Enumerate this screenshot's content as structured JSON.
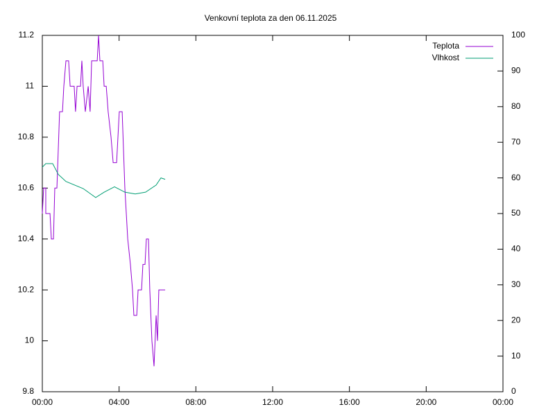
{
  "chart_data": {
    "type": "line",
    "title": "Venkovní teplota za den 06.11.2025",
    "xlim": [
      0,
      24
    ],
    "xticks": [
      {
        "value": 0,
        "label": "00:00"
      },
      {
        "value": 4,
        "label": "04:00"
      },
      {
        "value": 8,
        "label": "08:00"
      },
      {
        "value": 12,
        "label": "12:00"
      },
      {
        "value": 16,
        "label": "16:00"
      },
      {
        "value": 20,
        "label": "20:00"
      },
      {
        "value": 24,
        "label": "00:00"
      }
    ],
    "ylim": [
      9.8,
      11.2
    ],
    "yticks": [
      9.8,
      10,
      10.2,
      10.4,
      10.6,
      10.8,
      11,
      11.2
    ],
    "y2lim": [
      0,
      100
    ],
    "y2ticks": [
      0,
      10,
      20,
      30,
      40,
      50,
      60,
      70,
      80,
      90,
      100
    ],
    "legend": "top-right",
    "series": [
      {
        "name": "Teplota",
        "color": "#9400d3",
        "x": [
          0,
          0.07,
          0.18,
          0.18,
          0.4,
          0.47,
          0.58,
          0.65,
          0.76,
          0.9,
          1.05,
          1.12,
          1.23,
          1.37,
          1.45,
          1.66,
          1.73,
          1.81,
          1.99,
          2.06,
          2.13,
          2.24,
          2.39,
          2.49,
          2.57,
          2.86,
          2.93,
          3.0,
          3.15,
          3.22,
          3.33,
          3.43,
          3.58,
          3.69,
          3.87,
          4.01,
          4.16,
          4.3,
          4.45,
          4.59,
          4.7,
          4.77,
          4.92,
          4.99,
          5.17,
          5.24,
          5.35,
          5.42,
          5.53,
          5.6,
          5.71,
          5.82,
          5.93,
          6.0,
          6.07,
          6.4
        ],
        "values": [
          10.5,
          10.6,
          10.6,
          10.5,
          10.5,
          10.4,
          10.4,
          10.6,
          10.6,
          10.9,
          10.9,
          11.0,
          11.1,
          11.1,
          11.0,
          11.0,
          10.9,
          11.0,
          11.0,
          11.1,
          11.0,
          10.9,
          11.0,
          10.9,
          11.1,
          11.1,
          11.2,
          11.1,
          11.1,
          11.0,
          11.0,
          10.9,
          10.8,
          10.7,
          10.7,
          10.9,
          10.9,
          10.6,
          10.4,
          10.3,
          10.2,
          10.1,
          10.1,
          10.2,
          10.2,
          10.3,
          10.3,
          10.4,
          10.4,
          10.2,
          10.0,
          9.9,
          10.1,
          10.0,
          10.2,
          10.2
        ]
      },
      {
        "name": "Vlhkost",
        "color": "#009e73",
        "axis": "y2",
        "x": [
          0,
          0.18,
          0.54,
          0.83,
          1.23,
          2.13,
          2.78,
          3.22,
          3.76,
          4.3,
          4.84,
          5.38,
          5.93,
          6.18,
          6.4
        ],
        "values": [
          63,
          64,
          64,
          61,
          59,
          57,
          54.5,
          56,
          57.5,
          56,
          55.5,
          56,
          58,
          60,
          59.6
        ]
      }
    ]
  }
}
